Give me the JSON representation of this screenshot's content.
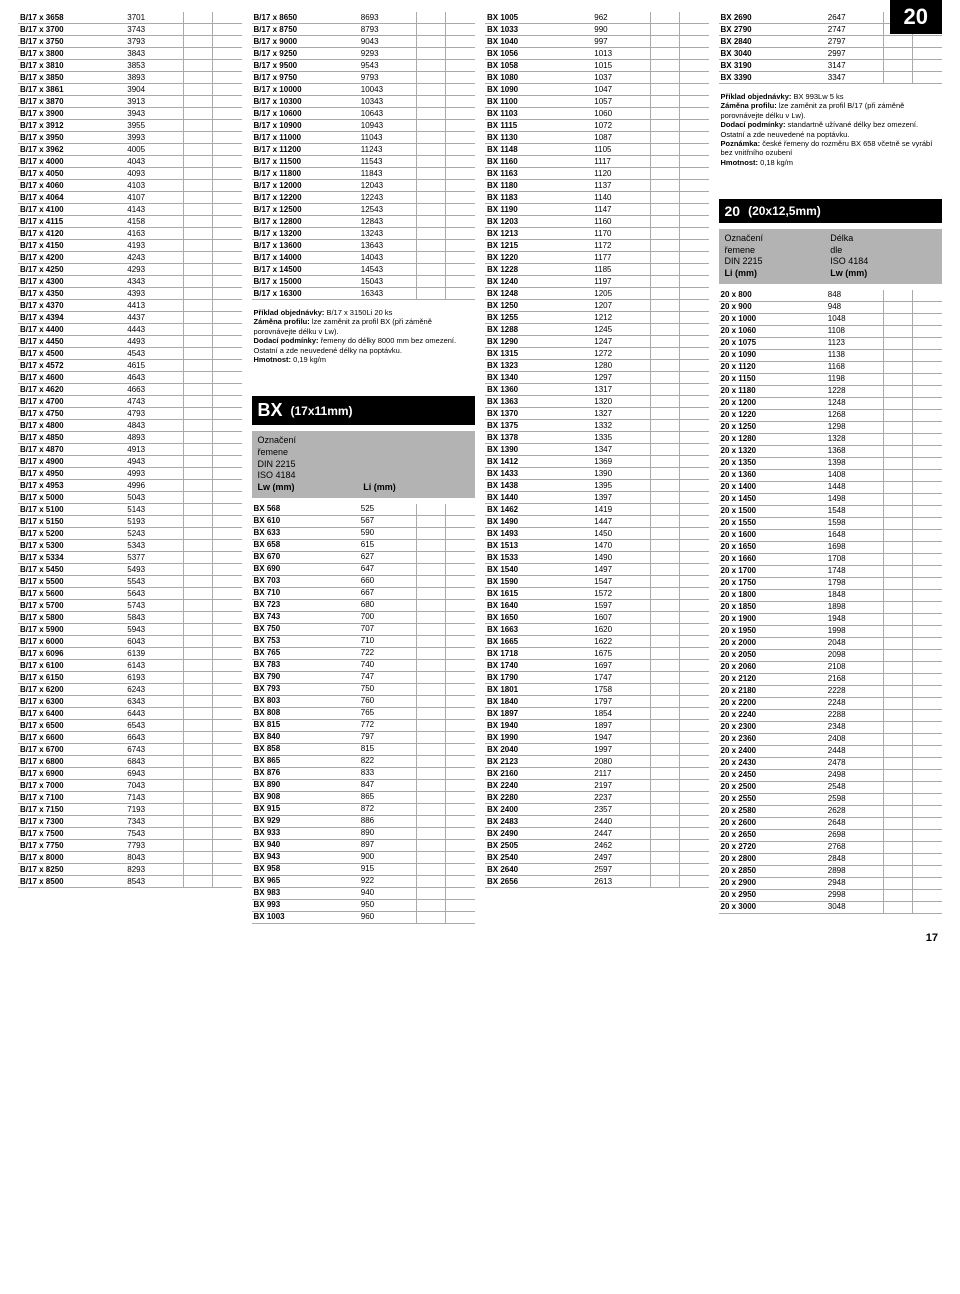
{
  "pageBadge": "20",
  "pageNumber": "17",
  "col1": {
    "rows": [
      [
        "B/17 x 3658",
        "3701"
      ],
      [
        "B/17 x 3700",
        "3743"
      ],
      [
        "B/17 x 3750",
        "3793"
      ],
      [
        "B/17 x 3800",
        "3843"
      ],
      [
        "B/17 x 3810",
        "3853"
      ],
      [
        "B/17 x 3850",
        "3893"
      ],
      [
        "B/17 x 3861",
        "3904"
      ],
      [
        "B/17 x 3870",
        "3913"
      ],
      [
        "B/17 x 3900",
        "3943"
      ],
      [
        "B/17 x 3912",
        "3955"
      ],
      [
        "B/17 x 3950",
        "3993"
      ],
      [
        "B/17 x 3962",
        "4005"
      ],
      [
        "B/17 x 4000",
        "4043"
      ],
      [
        "B/17 x 4050",
        "4093"
      ],
      [
        "B/17 x 4060",
        "4103"
      ],
      [
        "B/17 x 4064",
        "4107"
      ],
      [
        "B/17 x 4100",
        "4143"
      ],
      [
        "B/17 x 4115",
        "4158"
      ],
      [
        "B/17 x 4120",
        "4163"
      ],
      [
        "B/17 x 4150",
        "4193"
      ],
      [
        "B/17 x 4200",
        "4243"
      ],
      [
        "B/17 x 4250",
        "4293"
      ],
      [
        "B/17 x 4300",
        "4343"
      ],
      [
        "B/17 x 4350",
        "4393"
      ],
      [
        "B/17 x 4370",
        "4413"
      ],
      [
        "B/17 x 4394",
        "4437"
      ],
      [
        "B/17 x 4400",
        "4443"
      ],
      [
        "B/17 x 4450",
        "4493"
      ],
      [
        "B/17 x 4500",
        "4543"
      ],
      [
        "B/17 x 4572",
        "4615"
      ],
      [
        "B/17 x 4600",
        "4643"
      ],
      [
        "B/17 x 4620",
        "4663"
      ],
      [
        "B/17 x 4700",
        "4743"
      ],
      [
        "B/17 x 4750",
        "4793"
      ],
      [
        "B/17 x 4800",
        "4843"
      ],
      [
        "B/17 x 4850",
        "4893"
      ],
      [
        "B/17 x 4870",
        "4913"
      ],
      [
        "B/17 x 4900",
        "4943"
      ],
      [
        "B/17 x 4950",
        "4993"
      ],
      [
        "B/17 x 4953",
        "4996"
      ],
      [
        "B/17 x 5000",
        "5043"
      ],
      [
        "B/17 x 5100",
        "5143"
      ],
      [
        "B/17 x 5150",
        "5193"
      ],
      [
        "B/17 x 5200",
        "5243"
      ],
      [
        "B/17 x 5300",
        "5343"
      ],
      [
        "B/17 x 5334",
        "5377"
      ],
      [
        "B/17 x 5450",
        "5493"
      ],
      [
        "B/17 x 5500",
        "5543"
      ],
      [
        "B/17 x 5600",
        "5643"
      ],
      [
        "B/17 x 5700",
        "5743"
      ],
      [
        "B/17 x 5800",
        "5843"
      ],
      [
        "B/17 x 5900",
        "5943"
      ],
      [
        "B/17 x 6000",
        "6043"
      ],
      [
        "B/17 x 6096",
        "6139"
      ],
      [
        "B/17 x 6100",
        "6143"
      ],
      [
        "B/17 x 6150",
        "6193"
      ],
      [
        "B/17 x 6200",
        "6243"
      ],
      [
        "B/17 x 6300",
        "6343"
      ],
      [
        "B/17 x 6400",
        "6443"
      ],
      [
        "B/17 x 6500",
        "6543"
      ],
      [
        "B/17 x 6600",
        "6643"
      ],
      [
        "B/17 x 6700",
        "6743"
      ],
      [
        "B/17 x 6800",
        "6843"
      ],
      [
        "B/17 x 6900",
        "6943"
      ],
      [
        "B/17 x 7000",
        "7043"
      ],
      [
        "B/17 x 7100",
        "7143"
      ],
      [
        "B/17 x 7150",
        "7193"
      ],
      [
        "B/17 x 7300",
        "7343"
      ],
      [
        "B/17 x 7500",
        "7543"
      ],
      [
        "B/17 x 7750",
        "7793"
      ],
      [
        "B/17 x 8000",
        "8043"
      ],
      [
        "B/17 x 8250",
        "8293"
      ],
      [
        "B/17 x 8500",
        "8543"
      ]
    ]
  },
  "col2": {
    "rows": [
      [
        "B/17 x 8650",
        "8693"
      ],
      [
        "B/17 x 8750",
        "8793"
      ],
      [
        "B/17 x 9000",
        "9043"
      ],
      [
        "B/17 x 9250",
        "9293"
      ],
      [
        "B/17 x 9500",
        "9543"
      ],
      [
        "B/17 x 9750",
        "9793"
      ],
      [
        "B/17 x 10000",
        "10043"
      ],
      [
        "B/17 x 10300",
        "10343"
      ],
      [
        "B/17 x 10600",
        "10643"
      ],
      [
        "B/17 x 10900",
        "10943"
      ],
      [
        "B/17 x 11000",
        "11043"
      ],
      [
        "B/17 x 11200",
        "11243"
      ],
      [
        "B/17 x 11500",
        "11543"
      ],
      [
        "B/17 x 11800",
        "11843"
      ],
      [
        "B/17 x 12000",
        "12043"
      ],
      [
        "B/17 x 12200",
        "12243"
      ],
      [
        "B/17 x 12500",
        "12543"
      ],
      [
        "B/17 x 12800",
        "12843"
      ],
      [
        "B/17 x 13200",
        "13243"
      ],
      [
        "B/17 x 13600",
        "13643"
      ],
      [
        "B/17 x 14000",
        "14043"
      ],
      [
        "B/17 x 14500",
        "14543"
      ],
      [
        "B/17 x 15000",
        "15043"
      ],
      [
        "B/17 x 16300",
        "16343"
      ]
    ],
    "noteHtml": "<b>Příklad objednávky:</b> B/17 x 3150Li 20 ks<br><b>Záměna profilu:</b> lze zaměnit za profil BX (při záměně porovnávejte délku v Lw).<br><b>Dodací podmínky:</b> řemeny do délky 8000 mm bez omezení. Ostatní a zde neuvedené délky na poptávku.<br><b>Hmotnost:</b> 0,19 kg/m",
    "bx": {
      "tag": "BX",
      "label": "(17x11mm)",
      "sub": {
        "l1": "Označení",
        "l2": "řemene",
        "l3": "DIN 2215",
        "l4": "ISO 4184",
        "l5": "Lw (mm)",
        "r1": "",
        "r2": "",
        "r3": "",
        "r4": "",
        "r5": "Li (mm)"
      },
      "rows": [
        [
          "BX 568",
          "525"
        ],
        [
          "BX 610",
          "567"
        ],
        [
          "BX 633",
          "590"
        ],
        [
          "BX 658",
          "615"
        ],
        [
          "BX 670",
          "627"
        ],
        [
          "BX 690",
          "647"
        ],
        [
          "BX 703",
          "660"
        ],
        [
          "BX 710",
          "667"
        ],
        [
          "BX 723",
          "680"
        ],
        [
          "BX 743",
          "700"
        ],
        [
          "BX 750",
          "707"
        ],
        [
          "BX 753",
          "710"
        ],
        [
          "BX 765",
          "722"
        ],
        [
          "BX 783",
          "740"
        ],
        [
          "BX 790",
          "747"
        ],
        [
          "BX 793",
          "750"
        ],
        [
          "BX 803",
          "760"
        ],
        [
          "BX 808",
          "765"
        ],
        [
          "BX 815",
          "772"
        ],
        [
          "BX 840",
          "797"
        ],
        [
          "BX 858",
          "815"
        ],
        [
          "BX 865",
          "822"
        ],
        [
          "BX 876",
          "833"
        ],
        [
          "BX 890",
          "847"
        ],
        [
          "BX 908",
          "865"
        ],
        [
          "BX 915",
          "872"
        ],
        [
          "BX 929",
          "886"
        ],
        [
          "BX 933",
          "890"
        ],
        [
          "BX 940",
          "897"
        ],
        [
          "BX 943",
          "900"
        ],
        [
          "BX 958",
          "915"
        ],
        [
          "BX 965",
          "922"
        ],
        [
          "BX 983",
          "940"
        ],
        [
          "BX 993",
          "950"
        ],
        [
          "BX 1003",
          "960"
        ]
      ]
    }
  },
  "col3": {
    "rows": [
      [
        "BX 1005",
        "962"
      ],
      [
        "BX 1033",
        "990"
      ],
      [
        "BX 1040",
        "997"
      ],
      [
        "BX 1056",
        "1013"
      ],
      [
        "BX 1058",
        "1015"
      ],
      [
        "BX 1080",
        "1037"
      ],
      [
        "BX 1090",
        "1047"
      ],
      [
        "BX 1100",
        "1057"
      ],
      [
        "BX 1103",
        "1060"
      ],
      [
        "BX 1115",
        "1072"
      ],
      [
        "BX 1130",
        "1087"
      ],
      [
        "BX 1148",
        "1105"
      ],
      [
        "BX 1160",
        "1117"
      ],
      [
        "BX 1163",
        "1120"
      ],
      [
        "BX 1180",
        "1137"
      ],
      [
        "BX 1183",
        "1140"
      ],
      [
        "BX 1190",
        "1147"
      ],
      [
        "BX 1203",
        "1160"
      ],
      [
        "BX 1213",
        "1170"
      ],
      [
        "BX 1215",
        "1172"
      ],
      [
        "BX 1220",
        "1177"
      ],
      [
        "BX 1228",
        "1185"
      ],
      [
        "BX 1240",
        "1197"
      ],
      [
        "BX 1248",
        "1205"
      ],
      [
        "BX 1250",
        "1207"
      ],
      [
        "BX 1255",
        "1212"
      ],
      [
        "BX 1288",
        "1245"
      ],
      [
        "BX 1290",
        "1247"
      ],
      [
        "BX 1315",
        "1272"
      ],
      [
        "BX 1323",
        "1280"
      ],
      [
        "BX 1340",
        "1297"
      ],
      [
        "BX 1360",
        "1317"
      ],
      [
        "BX 1363",
        "1320"
      ],
      [
        "BX 1370",
        "1327"
      ],
      [
        "BX 1375",
        "1332"
      ],
      [
        "BX 1378",
        "1335"
      ],
      [
        "BX 1390",
        "1347"
      ],
      [
        "BX 1412",
        "1369"
      ],
      [
        "BX 1433",
        "1390"
      ],
      [
        "BX 1438",
        "1395"
      ],
      [
        "BX 1440",
        "1397"
      ],
      [
        "BX 1462",
        "1419"
      ],
      [
        "BX 1490",
        "1447"
      ],
      [
        "BX 1493",
        "1450"
      ],
      [
        "BX 1513",
        "1470"
      ],
      [
        "BX 1533",
        "1490"
      ],
      [
        "BX 1540",
        "1497"
      ],
      [
        "BX 1590",
        "1547"
      ],
      [
        "BX 1615",
        "1572"
      ],
      [
        "BX 1640",
        "1597"
      ],
      [
        "BX 1650",
        "1607"
      ],
      [
        "BX 1663",
        "1620"
      ],
      [
        "BX 1665",
        "1622"
      ],
      [
        "BX 1718",
        "1675"
      ],
      [
        "BX 1740",
        "1697"
      ],
      [
        "BX 1790",
        "1747"
      ],
      [
        "BX 1801",
        "1758"
      ],
      [
        "BX 1840",
        "1797"
      ],
      [
        "BX 1897",
        "1854"
      ],
      [
        "BX 1940",
        "1897"
      ],
      [
        "BX 1990",
        "1947"
      ],
      [
        "BX 2040",
        "1997"
      ],
      [
        "BX 2123",
        "2080"
      ],
      [
        "BX 2160",
        "2117"
      ],
      [
        "BX 2240",
        "2197"
      ],
      [
        "BX 2280",
        "2237"
      ],
      [
        "BX 2400",
        "2357"
      ],
      [
        "BX 2483",
        "2440"
      ],
      [
        "BX 2490",
        "2447"
      ],
      [
        "BX 2505",
        "2462"
      ],
      [
        "BX 2540",
        "2497"
      ],
      [
        "BX 2640",
        "2597"
      ],
      [
        "BX 2656",
        "2613"
      ]
    ]
  },
  "col4": {
    "rows": [
      [
        "BX 2690",
        "2647"
      ],
      [
        "BX 2790",
        "2747"
      ],
      [
        "BX 2840",
        "2797"
      ],
      [
        "BX 3040",
        "2997"
      ],
      [
        "BX 3190",
        "3147"
      ],
      [
        "BX 3390",
        "3347"
      ]
    ],
    "noteHtml": "<b>Příklad objednávky:</b> BX 993Lw 5 ks<br><b>Záměna profilu:</b> lze zaměnit za profil B/17 (při záměně porovnávejte délku v Lw).<br><b>Dodací podmínky:</b> standartně užívané délky bez omezení. Ostatní a zde neuvedené na poptávku.<br><b>Poznámka:</b> české řemeny do rozměru BX 658 včetně se vyrábí bez vnitřního ozubení<br><b>Hmotnost:</b> 0,18 kg/m",
    "p20": {
      "tag": "20",
      "label": "(20x12,5mm)",
      "sub": {
        "l1": "Označení",
        "l2": "řemene",
        "l3": "DIN 2215",
        "l4": "Li (mm)",
        "r1": "Délka",
        "r2": "dle",
        "r3": "ISO 4184",
        "r4": "Lw (mm)"
      },
      "rows": [
        [
          "20 x 800",
          "848"
        ],
        [
          "20 x 900",
          "948"
        ],
        [
          "20 x 1000",
          "1048"
        ],
        [
          "20 x 1060",
          "1108"
        ],
        [
          "20 x 1075",
          "1123"
        ],
        [
          "20 x 1090",
          "1138"
        ],
        [
          "20 x 1120",
          "1168"
        ],
        [
          "20 x 1150",
          "1198"
        ],
        [
          "20 x 1180",
          "1228"
        ],
        [
          "20 x 1200",
          "1248"
        ],
        [
          "20 x 1220",
          "1268"
        ],
        [
          "20 x 1250",
          "1298"
        ],
        [
          "20 x 1280",
          "1328"
        ],
        [
          "20 x 1320",
          "1368"
        ],
        [
          "20 x 1350",
          "1398"
        ],
        [
          "20 x 1360",
          "1408"
        ],
        [
          "20 x 1400",
          "1448"
        ],
        [
          "20 x 1450",
          "1498"
        ],
        [
          "20 x 1500",
          "1548"
        ],
        [
          "20 x 1550",
          "1598"
        ],
        [
          "20 x 1600",
          "1648"
        ],
        [
          "20 x 1650",
          "1698"
        ],
        [
          "20 x 1660",
          "1708"
        ],
        [
          "20 x 1700",
          "1748"
        ],
        [
          "20 x 1750",
          "1798"
        ],
        [
          "20 x 1800",
          "1848"
        ],
        [
          "20 x 1850",
          "1898"
        ],
        [
          "20 x 1900",
          "1948"
        ],
        [
          "20 x 1950",
          "1998"
        ],
        [
          "20 x 2000",
          "2048"
        ],
        [
          "20 x 2050",
          "2098"
        ],
        [
          "20 x 2060",
          "2108"
        ],
        [
          "20 x 2120",
          "2168"
        ],
        [
          "20 x 2180",
          "2228"
        ],
        [
          "20 x 2200",
          "2248"
        ],
        [
          "20 x 2240",
          "2288"
        ],
        [
          "20 x 2300",
          "2348"
        ],
        [
          "20 x 2360",
          "2408"
        ],
        [
          "20 x 2400",
          "2448"
        ],
        [
          "20 x 2430",
          "2478"
        ],
        [
          "20 x 2450",
          "2498"
        ],
        [
          "20 x 2500",
          "2548"
        ],
        [
          "20 x 2550",
          "2598"
        ],
        [
          "20 x 2580",
          "2628"
        ],
        [
          "20 x 2600",
          "2648"
        ],
        [
          "20 x 2650",
          "2698"
        ],
        [
          "20 x 2720",
          "2768"
        ],
        [
          "20 x 2800",
          "2848"
        ],
        [
          "20 x 2850",
          "2898"
        ],
        [
          "20 x 2900",
          "2948"
        ],
        [
          "20 x 2950",
          "2998"
        ],
        [
          "20 x 3000",
          "3048"
        ]
      ]
    }
  }
}
